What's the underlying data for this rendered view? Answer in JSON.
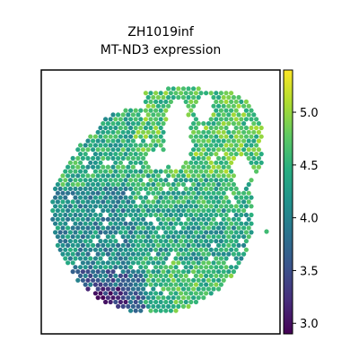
{
  "chart_data": {
    "type": "scatter",
    "title_line1": "ZH1019inf",
    "title_line2": "MT-ND3 expression",
    "xlabel": "",
    "ylabel": "",
    "colormap": "viridis",
    "colorbar": {
      "min": 2.9,
      "max": 5.4,
      "ticks": [
        3.0,
        3.5,
        4.0,
        4.5,
        5.0
      ],
      "tick_labels": [
        "3.0",
        "3.5",
        "4.0",
        "4.5",
        "5.0"
      ]
    },
    "axes_visible": false,
    "description_regions": [
      {
        "region": "upper-right lobe",
        "typical_value": 4.7
      },
      {
        "region": "left-center band",
        "typical_value": 4.1
      },
      {
        "region": "bottom-left edge",
        "typical_value": 3.3
      },
      {
        "region": "outlier spot right",
        "typical_value": 4.9
      }
    ]
  }
}
